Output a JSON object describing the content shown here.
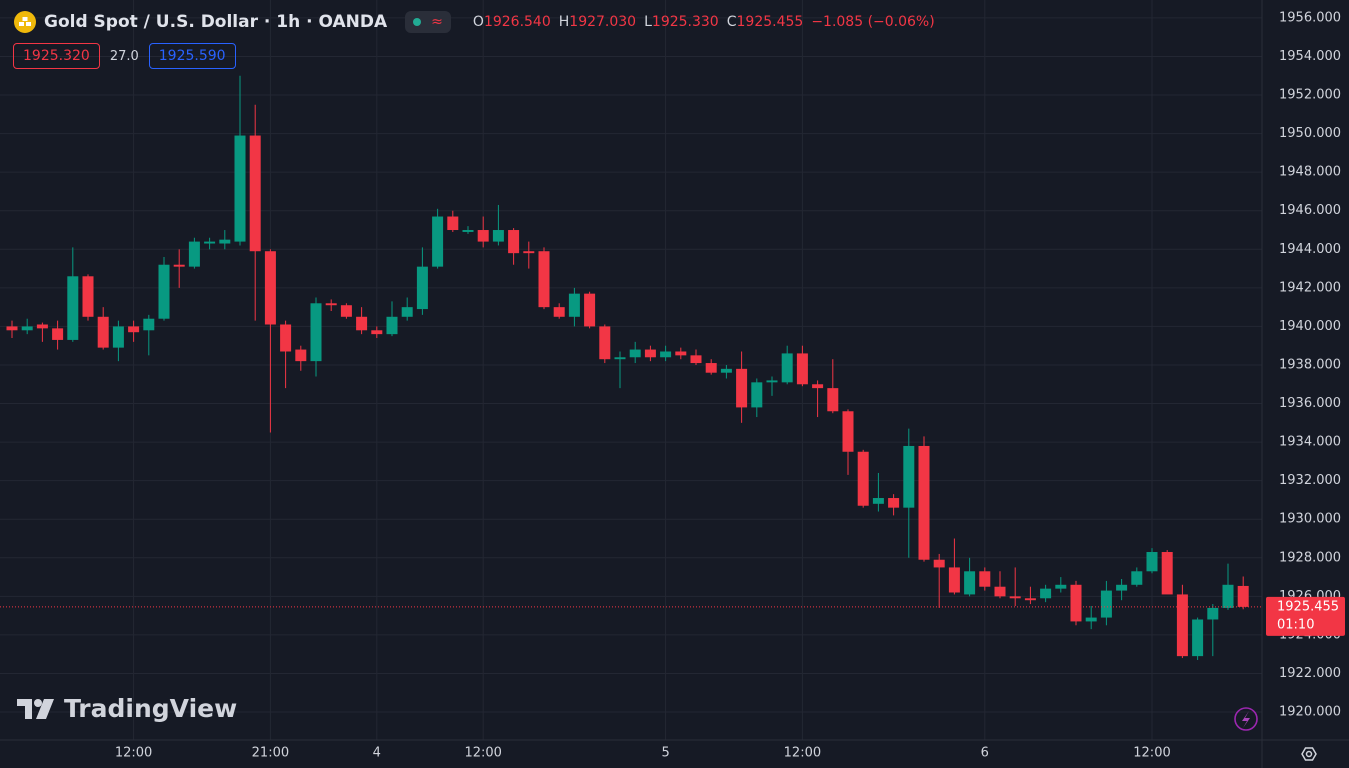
{
  "header": {
    "symbol": "Gold Spot / U.S. Dollar · 1h · OANDA",
    "wave": "≈",
    "ohlc": [
      {
        "key": "O",
        "value": "1926.540"
      },
      {
        "key": "H",
        "value": "1927.030"
      },
      {
        "key": "L",
        "value": "1925.330"
      },
      {
        "key": "C",
        "value": "1925.455"
      }
    ],
    "change": "−1.085 (−0.06%)",
    "bid": "1925.320",
    "spread": "27.0",
    "ask": "1925.590"
  },
  "watermark": "TradingView",
  "chart_data": {
    "type": "candlestick",
    "categories": [
      null,
      null,
      null,
      null,
      null,
      null,
      null,
      null,
      "12:00",
      null,
      null,
      null,
      null,
      null,
      null,
      null,
      null,
      "21:00",
      null,
      null,
      null,
      null,
      null,
      null,
      "4",
      null,
      null,
      null,
      null,
      null,
      null,
      "12:00",
      null,
      null,
      null,
      null,
      null,
      null,
      null,
      null,
      null,
      null,
      null,
      "5",
      null,
      null,
      null,
      null,
      null,
      null,
      null,
      null,
      "12:00",
      null,
      null,
      null,
      null,
      null,
      null,
      null,
      null,
      null,
      null,
      null,
      "6",
      null,
      null,
      null,
      null,
      null,
      null,
      null,
      null,
      null,
      null,
      "12:00",
      null,
      null,
      null,
      null,
      null,
      null
    ],
    "open": [
      1940.0,
      1939.8,
      1940.1,
      1939.9,
      1939.3,
      1942.6,
      1940.5,
      1938.9,
      1940.0,
      1939.8,
      1940.4,
      1943.2,
      1943.1,
      1944.3,
      1944.3,
      1944.4,
      1949.9,
      1943.9,
      1940.1,
      1938.8,
      1938.2,
      1941.2,
      1941.1,
      1940.5,
      1939.8,
      1939.6,
      1940.5,
      1940.9,
      1943.1,
      1945.7,
      1944.9,
      1945.0,
      1944.4,
      1945.0,
      1943.9,
      1943.9,
      1941.0,
      1940.5,
      1941.7,
      1940.0,
      1938.3,
      1938.4,
      1938.8,
      1938.4,
      1938.7,
      1938.5,
      1938.1,
      1937.6,
      1937.8,
      1935.8,
      1937.1,
      1937.1,
      1938.6,
      1937.0,
      1936.8,
      1935.6,
      1933.5,
      1930.8,
      1931.1,
      1930.6,
      1933.8,
      1927.9,
      1927.5,
      1926.1,
      1927.3,
      1926.5,
      1926.0,
      1925.9,
      1925.9,
      1926.4,
      1926.6,
      1924.7,
      1924.9,
      1926.3,
      1926.6,
      1927.3,
      1928.3,
      1926.1,
      1922.9,
      1924.8,
      1925.4,
      1926.54
    ],
    "high": [
      1940.3,
      1940.4,
      1940.2,
      1940.3,
      1944.1,
      1942.7,
      1941.0,
      1940.3,
      1940.3,
      1940.6,
      1943.6,
      1944.0,
      1944.6,
      1944.6,
      1945.0,
      1953.0,
      1951.5,
      1944.0,
      1940.3,
      1939.0,
      1941.5,
      1941.4,
      1941.2,
      1941.0,
      1940.0,
      1941.3,
      1941.5,
      1944.1,
      1946.1,
      1946.0,
      1945.2,
      1945.7,
      1946.3,
      1945.1,
      1944.4,
      1944.1,
      1941.2,
      1942.0,
      1941.8,
      1940.1,
      1938.7,
      1939.2,
      1939.0,
      1939.0,
      1938.9,
      1938.8,
      1938.3,
      1938.0,
      1938.7,
      1937.3,
      1937.4,
      1939.0,
      1939.0,
      1937.2,
      1938.3,
      1935.7,
      1933.6,
      1932.4,
      1931.3,
      1934.7,
      1934.3,
      1928.2,
      1929.0,
      1928.0,
      1927.5,
      1927.3,
      1927.5,
      1926.5,
      1926.6,
      1927.0,
      1926.8,
      1925.5,
      1926.8,
      1926.9,
      1927.5,
      1928.5,
      1928.4,
      1926.6,
      1924.9,
      1925.6,
      1927.7,
      1927.03
    ],
    "low": [
      1939.4,
      1939.6,
      1939.2,
      1938.8,
      1939.2,
      1940.3,
      1938.8,
      1938.2,
      1939.2,
      1938.5,
      1940.3,
      1942.0,
      1943.0,
      1944.0,
      1944.0,
      1944.2,
      1940.3,
      1934.5,
      1936.8,
      1937.7,
      1937.4,
      1940.8,
      1940.4,
      1939.6,
      1939.4,
      1939.5,
      1940.3,
      1940.6,
      1943.0,
      1944.9,
      1944.8,
      1944.1,
      1944.2,
      1943.2,
      1943.0,
      1940.9,
      1940.4,
      1940.0,
      1939.9,
      1938.1,
      1936.8,
      1938.1,
      1938.2,
      1938.2,
      1938.3,
      1938.0,
      1937.5,
      1937.3,
      1935.0,
      1935.3,
      1936.4,
      1937.0,
      1936.9,
      1935.3,
      1935.5,
      1932.3,
      1930.6,
      1930.4,
      1930.2,
      1928.0,
      1927.8,
      1925.4,
      1926.1,
      1926.0,
      1926.3,
      1925.9,
      1925.5,
      1925.6,
      1925.7,
      1926.2,
      1924.5,
      1924.3,
      1924.5,
      1925.8,
      1926.5,
      1927.2,
      1926.3,
      1922.8,
      1922.7,
      1922.9,
      1925.3,
      1925.33
    ],
    "close": [
      1939.8,
      1940.0,
      1939.9,
      1939.3,
      1942.6,
      1940.5,
      1938.9,
      1940.0,
      1939.7,
      1940.4,
      1943.2,
      1943.1,
      1944.4,
      1944.4,
      1944.5,
      1949.9,
      1943.9,
      1940.1,
      1938.7,
      1938.2,
      1941.2,
      1941.1,
      1940.5,
      1939.8,
      1939.6,
      1940.5,
      1941.0,
      1943.1,
      1945.7,
      1945.0,
      1945.0,
      1944.4,
      1945.0,
      1943.8,
      1943.8,
      1941.0,
      1940.5,
      1941.7,
      1940.0,
      1938.3,
      1938.4,
      1938.8,
      1938.4,
      1938.7,
      1938.5,
      1938.1,
      1937.6,
      1937.8,
      1935.8,
      1937.1,
      1937.2,
      1938.6,
      1937.0,
      1936.8,
      1935.6,
      1933.5,
      1930.7,
      1931.1,
      1930.6,
      1933.8,
      1927.9,
      1927.5,
      1926.2,
      1927.3,
      1926.5,
      1926.0,
      1925.9,
      1925.8,
      1926.4,
      1926.6,
      1924.7,
      1924.9,
      1926.3,
      1926.6,
      1927.3,
      1928.3,
      1926.1,
      1922.9,
      1924.8,
      1925.4,
      1926.6,
      1925.455
    ],
    "up_color": "#089981",
    "down_color": "#f23645",
    "ylim": [
      1918.55,
      1956.93
    ],
    "yticks": [
      {
        "value": 1920,
        "label": "1920.000"
      },
      {
        "value": 1922,
        "label": "1922.000"
      },
      {
        "value": 1924,
        "label": "1924.000"
      },
      {
        "value": 1926,
        "label": "1926.000"
      },
      {
        "value": 1928,
        "label": "1928.000"
      },
      {
        "value": 1930,
        "label": "1930.000"
      },
      {
        "value": 1932,
        "label": "1932.000"
      },
      {
        "value": 1934,
        "label": "1934.000"
      },
      {
        "value": 1936,
        "label": "1936.000"
      },
      {
        "value": 1938,
        "label": "1938.000"
      },
      {
        "value": 1940,
        "label": "1940.000"
      },
      {
        "value": 1942,
        "label": "1942.000"
      },
      {
        "value": 1944,
        "label": "1944.000"
      },
      {
        "value": 1946,
        "label": "1946.000"
      },
      {
        "value": 1948,
        "label": "1948.000"
      },
      {
        "value": 1950,
        "label": "1950.000"
      },
      {
        "value": 1952,
        "label": "1952.000"
      },
      {
        "value": 1954,
        "label": "1954.000"
      },
      {
        "value": 1956,
        "label": "1956.000"
      }
    ],
    "grid": true,
    "last_price": 1925.455,
    "countdown": "01:10"
  }
}
